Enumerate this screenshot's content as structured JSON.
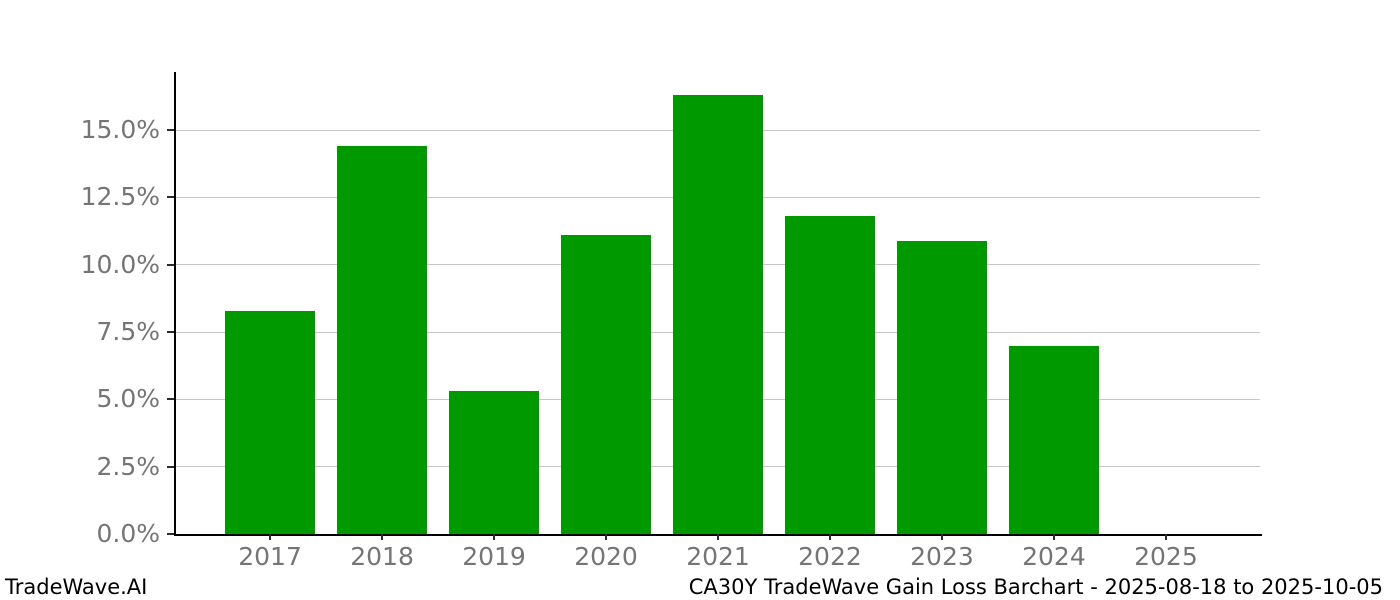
{
  "footer": {
    "brand": "TradeWave.AI"
  },
  "chart_data": {
    "type": "bar",
    "title": "CA30Y TradeWave Gain Loss Barchart - 2025-08-18 to 2025-10-05",
    "xlabel": "",
    "ylabel": "",
    "categories": [
      "2017",
      "2018",
      "2019",
      "2020",
      "2021",
      "2022",
      "2023",
      "2024",
      "2025"
    ],
    "values": [
      8.3,
      14.4,
      5.3,
      11.1,
      16.3,
      11.8,
      10.9,
      7.0,
      0.0
    ],
    "yticks": [
      0.0,
      2.5,
      5.0,
      7.5,
      10.0,
      12.5,
      15.0
    ],
    "ytick_labels": [
      "0.0%",
      "2.5%",
      "5.0%",
      "7.5%",
      "10.0%",
      "12.5%",
      "15.0%"
    ],
    "ylim": [
      0,
      17.16
    ],
    "x_pad_units": 0.84,
    "bar_width_units": 0.8,
    "grid": true,
    "legend": false,
    "colors": {
      "bar": "#009a00",
      "grid": "#c6c6c6",
      "tick_label": "#757575",
      "tick_mark": "#2b2b2b",
      "axis": "#000000",
      "background": "#ffffff"
    }
  }
}
